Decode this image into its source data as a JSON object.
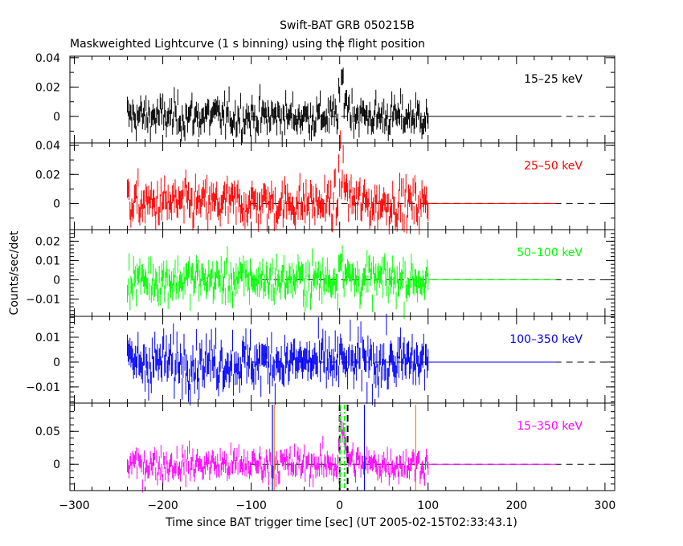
{
  "chart_data": {
    "type": "line",
    "title": "Swift-BAT GRB 050215B",
    "subtitle": "Maskweighted Lightcurve (1 s binning) using the flight position",
    "xlabel": "Time since BAT trigger time [sec] (UT 2005-02-15T02:33:43.1)",
    "ylabel": "Counts/sec/det",
    "xlim": [
      -305,
      311
    ],
    "x_ticks": [
      -300,
      -200,
      -100,
      0,
      100,
      200,
      300
    ],
    "x_tick_labels": [
      "−300",
      "−200",
      "−100",
      "0",
      "100",
      "200",
      "300"
    ],
    "data_time_range": [
      -240,
      100
    ],
    "zero_fill_range": [
      100,
      245
    ],
    "binning_sec": 1,
    "grid": false,
    "panels": [
      {
        "name": "15-25 keV",
        "label": "15–25 keV",
        "color": "#000000",
        "ylim": [
          -0.018,
          0.041
        ],
        "yticks": [
          0,
          0.02,
          0.04
        ],
        "ytick_labels": [
          "0",
          "0.02",
          "0.04"
        ],
        "minor": 0.01,
        "noise_sigma": 0.006,
        "peak": 0.033,
        "peak_time": 1,
        "decay_sec": 6
      },
      {
        "name": "25-50 keV",
        "label": "25–50 keV",
        "color": "#ff0000",
        "ylim": [
          -0.018,
          0.0417
        ],
        "yticks": [
          0,
          0.02,
          0.04
        ],
        "ytick_labels": [
          "0",
          "0.02",
          "0.04"
        ],
        "minor": 0.01,
        "noise_sigma": 0.007,
        "peak": 0.033,
        "peak_time": 1,
        "decay_sec": 5
      },
      {
        "name": "50-100 keV",
        "label": "50–100 keV",
        "color": "#00ff00",
        "ylim": [
          -0.019,
          0.026
        ],
        "yticks": [
          -0.01,
          0,
          0.01,
          0.02
        ],
        "ytick_labels": [
          "−0.01",
          "0",
          "0.01",
          "0.02"
        ],
        "minor": 0.002,
        "noise_sigma": 0.005,
        "peak": 0.016,
        "peak_time": 1,
        "decay_sec": 4
      },
      {
        "name": "100-350 keV",
        "label": "100–350 keV",
        "color": "#0000ff",
        "ylim": [
          -0.0165,
          0.0184
        ],
        "yticks": [
          -0.01,
          0,
          0.01
        ],
        "ytick_labels": [
          "−0.01",
          "0",
          "0.01"
        ],
        "minor": 0.002,
        "noise_sigma": 0.0048,
        "peak": 0,
        "peak_time": 1,
        "decay_sec": 4
      },
      {
        "name": "15-350 keV",
        "label": "15–350 keV",
        "color": "#ff00ff",
        "ylim": [
          -0.04,
          0.093
        ],
        "yticks": [
          0,
          0.05
        ],
        "ytick_labels": [
          "0",
          "0.05"
        ],
        "minor": 0.01,
        "noise_sigma": 0.011,
        "peak": 0.075,
        "peak_time": 1,
        "decay_sec": 5
      }
    ],
    "markers": [
      {
        "x": -76,
        "color": "#0000ff",
        "style": "solid"
      },
      {
        "x": -74,
        "color": "#ff8000",
        "style": "solid"
      },
      {
        "x": 0,
        "color": "#000000",
        "style": "dashed"
      },
      {
        "x": 0.5,
        "color": "#00ff00",
        "style": "dashdot"
      },
      {
        "x": 5.5,
        "color": "#00ff00",
        "style": "dashdot"
      },
      {
        "x": 9,
        "color": "#000000",
        "style": "dashed"
      },
      {
        "x": 28,
        "color": "#0000ff",
        "style": "solid"
      },
      {
        "x": 86,
        "color": "#ff8000",
        "style": "solid"
      }
    ]
  }
}
